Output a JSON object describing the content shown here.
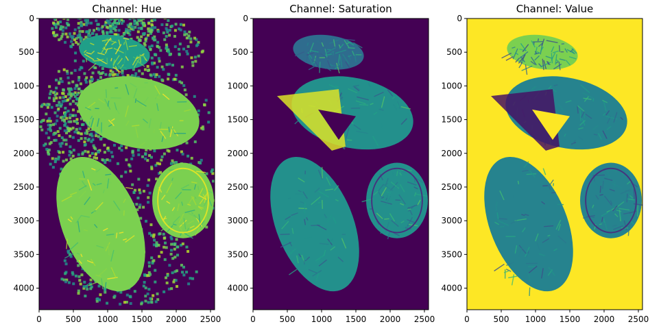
{
  "chart_data": [
    {
      "type": "heatmap",
      "title": "Channel: Hue",
      "colormap": "viridis",
      "xlim": [
        0,
        2560
      ],
      "ylim": [
        4320,
        0
      ],
      "x_ticks": [
        0,
        500,
        1000,
        1500,
        2000,
        2500
      ],
      "y_ticks": [
        0,
        500,
        1000,
        1500,
        2000,
        2500,
        3000,
        3500,
        4000
      ],
      "background_level": 0.0,
      "tissue_level": 0.8,
      "speckle_border": true
    },
    {
      "type": "heatmap",
      "title": "Channel: Saturation",
      "colormap": "viridis",
      "xlim": [
        0,
        2560
      ],
      "ylim": [
        4320,
        0
      ],
      "x_ticks": [
        0,
        500,
        1000,
        1500,
        2000,
        2500
      ],
      "y_ticks": [
        0,
        500,
        1000,
        1500,
        2000,
        2500,
        3000,
        3500,
        4000
      ],
      "background_level": 0.0,
      "tissue_level": 0.5,
      "speckle_border": false
    },
    {
      "type": "heatmap",
      "title": "Channel: Value",
      "colormap": "viridis",
      "xlim": [
        0,
        2560
      ],
      "ylim": [
        4320,
        0
      ],
      "x_ticks": [
        0,
        500,
        1000,
        1500,
        2000,
        2500
      ],
      "y_ticks": [
        0,
        500,
        1000,
        1500,
        2000,
        2500,
        3000,
        3500,
        4000
      ],
      "background_level": 1.0,
      "tissue_level": 0.45,
      "speckle_border": false
    }
  ],
  "colors": {
    "viridis_dark": "#440154",
    "viridis_teal": "#21908c",
    "viridis_green": "#5ec962",
    "viridis_lime": "#b5de2b",
    "viridis_yellow": "#fde725"
  }
}
